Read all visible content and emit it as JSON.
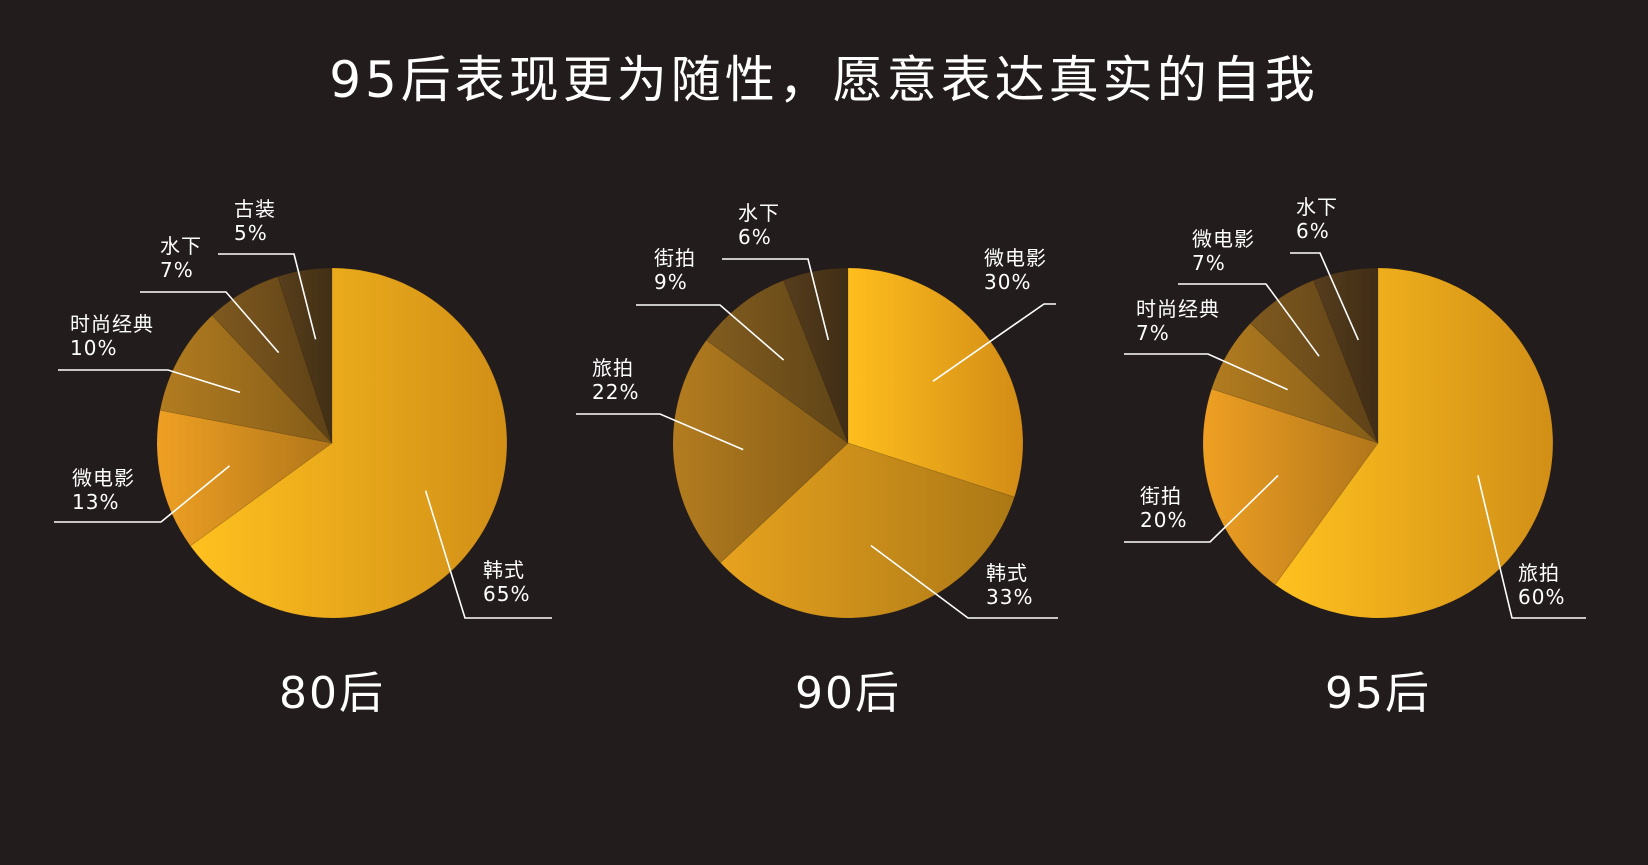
{
  "title": "95后表现更为随性，愿意表达真实的自我",
  "chart_data": [
    {
      "type": "pie",
      "caption": "80后",
      "slices": [
        {
          "label": "韩式",
          "value": 65,
          "display": "65%",
          "color": "#f6a81b"
        },
        {
          "label": "微电影",
          "value": 13,
          "display": "13%",
          "color": "#d08b1e"
        },
        {
          "label": "时尚经典",
          "value": 10,
          "display": "10%",
          "color": "#9b6c1c"
        },
        {
          "label": "水下",
          "value": 7,
          "display": "7%",
          "color": "#6e4d1b"
        },
        {
          "label": "古装",
          "value": 5,
          "display": "5%",
          "color": "#4d3718"
        }
      ]
    },
    {
      "type": "pie",
      "caption": "90后",
      "slices": [
        {
          "label": "微电影",
          "value": 30,
          "display": "30%",
          "color": "#f7a51a"
        },
        {
          "label": "韩式",
          "value": 33,
          "display": "33%",
          "color": "#c98d1a"
        },
        {
          "label": "旅拍",
          "value": 22,
          "display": "22%",
          "color": "#9c6c1b"
        },
        {
          "label": "街拍",
          "value": 9,
          "display": "9%",
          "color": "#70501b"
        },
        {
          "label": "水下",
          "value": 6,
          "display": "6%",
          "color": "#4b3519"
        }
      ]
    },
    {
      "type": "pie",
      "caption": "95后",
      "slices": [
        {
          "label": "旅拍",
          "value": 60,
          "display": "60%",
          "color": "#f6a81b"
        },
        {
          "label": "街拍",
          "value": 20,
          "display": "20%",
          "color": "#d08b1e"
        },
        {
          "label": "时尚经典",
          "value": 7,
          "display": "7%",
          "color": "#9b6c1c"
        },
        {
          "label": "微电影",
          "value": 7,
          "display": "7%",
          "color": "#6e4d1b"
        },
        {
          "label": "水下",
          "value": 6,
          "display": "6%",
          "color": "#4b3519"
        }
      ]
    }
  ]
}
